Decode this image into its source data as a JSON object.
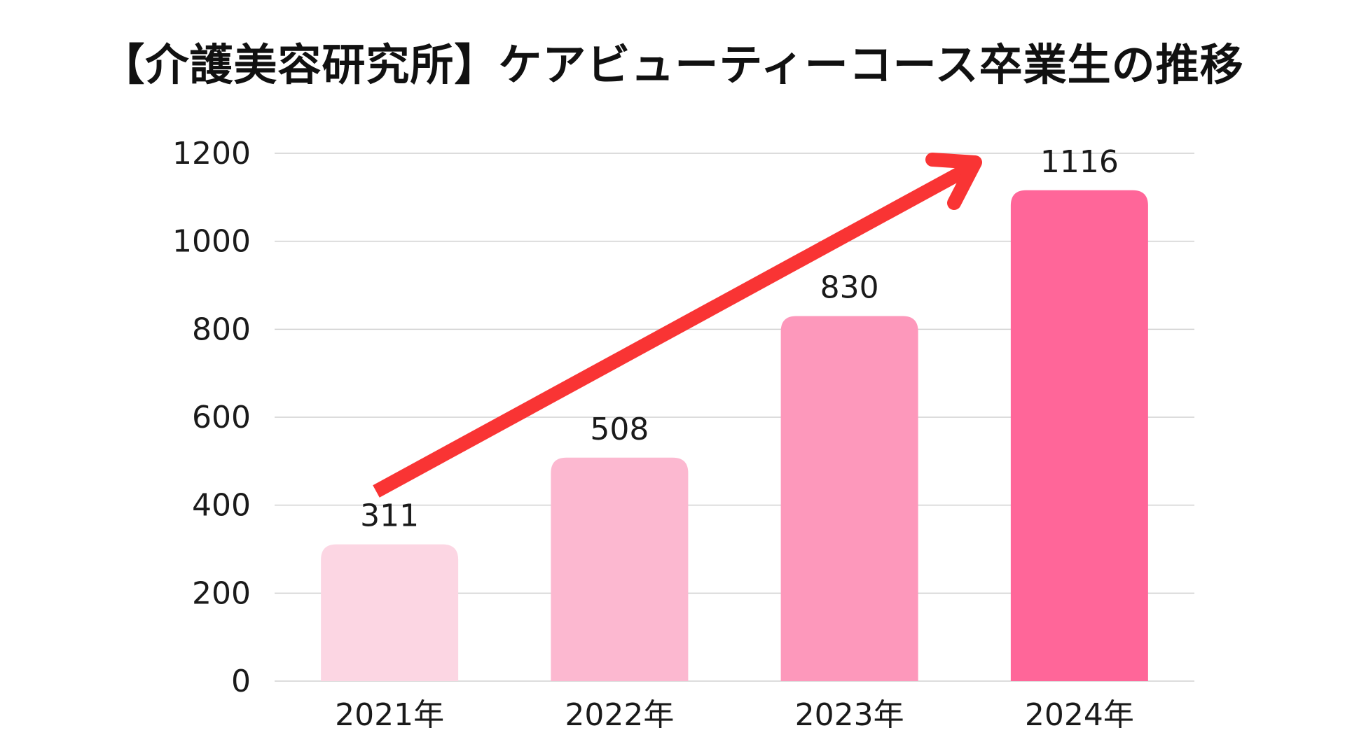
{
  "chart_data": {
    "type": "bar",
    "title": "【介護美容研究所】ケアビューティーコース卒業生の推移",
    "categories": [
      "2021年",
      "2022年",
      "2023年",
      "2024年"
    ],
    "values": [
      311,
      508,
      830,
      1116
    ],
    "data_labels": [
      "311",
      "508",
      "830",
      "1116"
    ],
    "ylim": [
      0,
      1200
    ],
    "yticks": [
      0,
      200,
      400,
      600,
      800,
      1000,
      1200
    ],
    "ytick_labels": [
      "0",
      "200",
      "400",
      "600",
      "800",
      "1000",
      "1200"
    ],
    "xlabel": "",
    "ylabel": "",
    "grid": true,
    "legend": "none",
    "bar_colors": [
      "#FCD6E3",
      "#FCB8D0",
      "#FD98BB",
      "#FF6699"
    ],
    "grid_color": "#D0D0D0",
    "trend_arrow_color": "#F93434"
  }
}
